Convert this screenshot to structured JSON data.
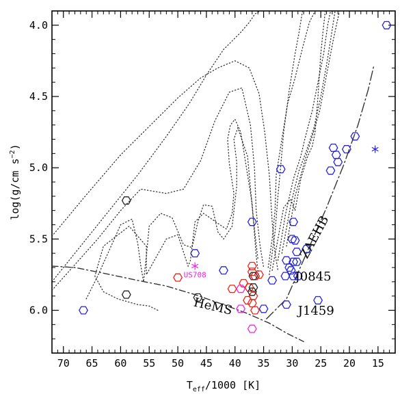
{
  "chart_data": {
    "type": "scatter",
    "title": "",
    "xlabel": "T_eff/1000 [K]",
    "xlabel_main": "T",
    "xlabel_sub": "eff",
    "xlabel_rest": "/1000 [K]",
    "ylabel": "log(g/cm s^-2)",
    "ylabel_main": "log(g/cm s",
    "ylabel_sup": "−2",
    "ylabel_close": ")",
    "xlim": [
      72,
      12
    ],
    "ylim": [
      6.3,
      3.9
    ],
    "x_ticks": [
      70,
      65,
      60,
      55,
      50,
      45,
      40,
      35,
      30,
      25,
      20,
      15
    ],
    "y_ticks": [
      "4.0",
      "4.5",
      "5.0",
      "5.5",
      "6.0"
    ],
    "y_tick_values": [
      4.0,
      4.5,
      5.0,
      5.5,
      6.0
    ],
    "colors": {
      "blue": "#2222dd",
      "red": "#ee2211",
      "magenta": "#ee22ee",
      "black": "#222222",
      "line": "#333333"
    },
    "series": [
      {
        "name": "blue",
        "marker": "hexagon",
        "color": "#2222dd",
        "points": [
          [
            13.5,
            4.0
          ],
          [
            19,
            4.78
          ],
          [
            20.5,
            4.87
          ],
          [
            22,
            4.96
          ],
          [
            22.3,
            4.91
          ],
          [
            22.8,
            4.86
          ],
          [
            23.3,
            5.02
          ],
          [
            32,
            5.01
          ],
          [
            37,
            5.38
          ],
          [
            29.8,
            5.38
          ],
          [
            30,
            5.5
          ],
          [
            29.5,
            5.51
          ],
          [
            29.2,
            5.59
          ],
          [
            27.5,
            5.57
          ],
          [
            31,
            5.65
          ],
          [
            29.8,
            5.66
          ],
          [
            29.2,
            5.66
          ],
          [
            30.5,
            5.7
          ],
          [
            30.2,
            5.72
          ],
          [
            29.8,
            5.76
          ],
          [
            31.2,
            5.76
          ],
          [
            29,
            5.76
          ],
          [
            33.5,
            5.79
          ],
          [
            36.5,
            5.76
          ],
          [
            35,
            5.99
          ],
          [
            31,
            5.96
          ],
          [
            25.5,
            5.93
          ],
          [
            42,
            5.72
          ],
          [
            47,
            5.6
          ],
          [
            66.5,
            6.0
          ]
        ]
      },
      {
        "name": "red",
        "marker": "hexagon",
        "color": "#ee2211",
        "points": [
          [
            50,
            5.77
          ],
          [
            37,
            5.69
          ],
          [
            37,
            5.73
          ],
          [
            36.5,
            5.76
          ],
          [
            35.8,
            5.75
          ],
          [
            38.5,
            5.81
          ],
          [
            40.5,
            5.85
          ],
          [
            37.5,
            5.84
          ],
          [
            36.8,
            5.9
          ],
          [
            37.8,
            5.93
          ],
          [
            37,
            5.95
          ],
          [
            36.5,
            6.0
          ]
        ]
      },
      {
        "name": "magenta",
        "marker": "hexagon",
        "color": "#ee22ee",
        "points": [
          [
            39,
            5.85
          ],
          [
            39,
            5.99
          ],
          [
            37,
            6.13
          ]
        ]
      },
      {
        "name": "black",
        "marker": "hexagon",
        "color": "#222222",
        "points": [
          [
            59,
            5.23
          ],
          [
            59,
            5.89
          ],
          [
            46.5,
            5.91
          ],
          [
            37,
            5.87
          ],
          [
            36.8,
            5.84
          ],
          [
            36.8,
            5.76
          ]
        ]
      },
      {
        "name": "asterisk",
        "marker": "asterisk",
        "points": [
          [
            15.5,
            4.87,
            "#2222dd"
          ],
          [
            47,
            5.69,
            "#ee22ee"
          ]
        ]
      }
    ],
    "annotations": [
      {
        "text": "US708",
        "at": [
          47,
          5.77
        ],
        "color": "#ee22ee",
        "anchor": "middle",
        "size": "small"
      },
      {
        "text": "J0845",
        "at": [
          29.5,
          5.79
        ],
        "color": "#000000",
        "anchor": "start"
      },
      {
        "text": "J1459",
        "at": [
          29,
          6.03
        ],
        "color": "#000000",
        "anchor": "start"
      },
      {
        "text": "HeMS",
        "at": [
          44,
          6.0
        ],
        "color": "#000000",
        "anchor": "middle",
        "rotate": 13
      },
      {
        "text": "ZAEHB",
        "at": [
          25.5,
          5.5
        ],
        "color": "#000000",
        "anchor": "middle",
        "rotate": -62
      }
    ],
    "lines": [
      {
        "name": "ZAEHB",
        "style": "longdash-dot",
        "points": [
          [
            34.5,
            6.06
          ],
          [
            31,
            5.92
          ],
          [
            27.5,
            5.6
          ],
          [
            24,
            5.28
          ],
          [
            21,
            4.98
          ],
          [
            18.5,
            4.7
          ],
          [
            16.7,
            4.45
          ],
          [
            15.7,
            4.28
          ]
        ]
      },
      {
        "name": "HeMS",
        "style": "dash-dot",
        "points": [
          [
            72,
            5.69
          ],
          [
            68,
            5.7
          ],
          [
            63,
            5.74
          ],
          [
            57,
            5.79
          ],
          [
            52,
            5.83
          ],
          [
            47,
            5.89
          ],
          [
            42,
            5.96
          ],
          [
            38,
            6.02
          ],
          [
            34,
            6.09
          ],
          [
            31,
            6.16
          ],
          [
            28,
            6.22
          ]
        ]
      },
      {
        "name": "track-1",
        "style": "dotted",
        "points": [
          [
            72,
            5.48
          ],
          [
            66,
            5.19
          ],
          [
            60,
            4.91
          ],
          [
            55,
            4.71
          ],
          [
            50,
            4.51
          ],
          [
            46,
            4.37
          ],
          [
            43,
            4.3
          ],
          [
            40,
            4.25
          ],
          [
            37.5,
            4.3
          ],
          [
            35.8,
            4.48
          ],
          [
            34.8,
            4.75
          ],
          [
            34,
            5.05
          ],
          [
            33.5,
            5.38
          ],
          [
            33,
            5.6
          ],
          [
            32.5,
            5.72
          ]
        ]
      },
      {
        "name": "track-2",
        "style": "dotted",
        "points": [
          [
            72,
            5.8
          ],
          [
            67,
            5.55
          ],
          [
            62,
            5.3
          ],
          [
            57,
            5.05
          ],
          [
            52,
            4.78
          ],
          [
            48,
            4.55
          ],
          [
            45,
            4.35
          ],
          [
            42,
            4.17
          ],
          [
            39,
            4.05
          ],
          [
            37.5,
            3.98
          ],
          [
            36.5,
            3.92
          ],
          [
            35.6,
            3.9
          ]
        ]
      },
      {
        "name": "track-3",
        "style": "dotted",
        "points": [
          [
            72,
            5.86
          ],
          [
            68,
            5.68
          ],
          [
            64,
            5.5
          ],
          [
            60,
            5.3
          ],
          [
            56.5,
            5.15
          ],
          [
            52,
            5.18
          ],
          [
            49,
            5.15
          ],
          [
            46,
            4.95
          ],
          [
            43.5,
            4.67
          ],
          [
            41,
            4.47
          ],
          [
            38.8,
            4.44
          ],
          [
            37.3,
            4.7
          ],
          [
            36.6,
            5.0
          ],
          [
            36.3,
            5.3
          ],
          [
            35.6,
            5.55
          ],
          [
            35,
            5.7
          ]
        ]
      },
      {
        "name": "track-4",
        "style": "dotted",
        "points": [
          [
            66,
            5.92
          ],
          [
            64,
            5.76
          ],
          [
            62,
            5.58
          ],
          [
            60,
            5.4
          ],
          [
            58,
            5.36
          ],
          [
            57,
            5.53
          ],
          [
            56.5,
            5.68
          ],
          [
            56,
            5.8
          ],
          [
            55.5,
            5.62
          ],
          [
            55,
            5.41
          ],
          [
            53,
            5.32
          ],
          [
            51,
            5.35
          ],
          [
            49,
            5.54
          ],
          [
            47.5,
            5.56
          ],
          [
            46.5,
            5.38
          ],
          [
            45.5,
            5.26
          ],
          [
            44,
            5.27
          ],
          [
            43,
            5.45
          ],
          [
            42,
            5.5
          ],
          [
            40.5,
            5.41
          ],
          [
            39.7,
            5.13
          ],
          [
            39.7,
            4.96
          ],
          [
            40.2,
            4.8
          ],
          [
            39.5,
            4.72
          ],
          [
            37.8,
            4.92
          ],
          [
            36.8,
            5.36
          ],
          [
            36,
            5.64
          ]
        ]
      },
      {
        "name": "track-5",
        "style": "dotted",
        "points": [
          [
            53.5,
            6.0
          ],
          [
            55,
            5.97
          ],
          [
            57,
            5.96
          ],
          [
            60.5,
            5.92
          ],
          [
            63,
            5.87
          ],
          [
            64.5,
            5.76
          ],
          [
            63,
            5.55
          ],
          [
            58.5,
            5.41
          ],
          [
            55.5,
            5.55
          ],
          [
            55.5,
            5.75
          ],
          [
            52,
            5.5
          ],
          [
            50,
            5.47
          ],
          [
            48.2,
            5.69
          ],
          [
            47.8,
            5.65
          ],
          [
            47,
            5.38
          ],
          [
            45.5,
            5.32
          ],
          [
            43,
            5.39
          ],
          [
            41.5,
            5.43
          ],
          [
            40.5,
            5.32
          ],
          [
            40.2,
            5.18
          ],
          [
            41,
            4.97
          ],
          [
            41.3,
            4.8
          ],
          [
            40.8,
            4.7
          ],
          [
            40,
            4.66
          ],
          [
            39,
            4.75
          ],
          [
            37,
            5.25
          ],
          [
            36.3,
            5.62
          ],
          [
            35.8,
            5.78
          ]
        ]
      },
      {
        "name": "track-6",
        "style": "dotted",
        "points": [
          [
            34.2,
            5.7
          ],
          [
            33.5,
            5.5
          ],
          [
            33,
            5.3
          ],
          [
            32.8,
            5.05
          ],
          [
            31.8,
            4.8
          ],
          [
            30.8,
            4.55
          ],
          [
            29.5,
            4.37
          ],
          [
            28.2,
            4.16
          ],
          [
            27,
            3.98
          ],
          [
            26,
            3.9
          ]
        ]
      },
      {
        "name": "track-7",
        "style": "dotted",
        "points": [
          [
            34,
            5.75
          ],
          [
            33,
            5.45
          ],
          [
            32.5,
            5.2
          ],
          [
            32,
            4.98
          ],
          [
            31.5,
            4.75
          ],
          [
            30.5,
            4.45
          ],
          [
            29.5,
            4.2
          ],
          [
            28.8,
            4.05
          ],
          [
            28.2,
            3.9
          ]
        ]
      },
      {
        "name": "track-8",
        "style": "dotted",
        "points": [
          [
            33.5,
            5.72
          ],
          [
            32.5,
            5.5
          ],
          [
            31.5,
            5.28
          ],
          [
            30.3,
            5.22
          ],
          [
            29.5,
            5.3
          ],
          [
            28.5,
            5.08
          ],
          [
            27.3,
            4.92
          ],
          [
            26.5,
            4.85
          ],
          [
            26,
            4.75
          ],
          [
            25.5,
            4.5
          ],
          [
            25,
            4.2
          ],
          [
            24.5,
            4.0
          ],
          [
            24.2,
            3.9
          ]
        ]
      },
      {
        "name": "track-9",
        "style": "dotted",
        "points": [
          [
            32.5,
            5.65
          ],
          [
            31.2,
            5.33
          ],
          [
            29.8,
            5.08
          ],
          [
            28.5,
            4.92
          ],
          [
            27.8,
            4.8
          ],
          [
            26.5,
            4.6
          ],
          [
            25.5,
            4.4
          ],
          [
            24.5,
            4.2
          ],
          [
            23.8,
            4.0
          ],
          [
            23.3,
            3.9
          ]
        ]
      },
      {
        "name": "track-10",
        "style": "dotted",
        "points": [
          [
            31.8,
            5.6
          ],
          [
            30.2,
            5.25
          ],
          [
            28.8,
            5.02
          ],
          [
            27.5,
            4.88
          ],
          [
            26.2,
            4.72
          ],
          [
            25,
            4.5
          ],
          [
            24,
            4.28
          ],
          [
            23.2,
            4.08
          ],
          [
            22.5,
            3.9
          ]
        ]
      },
      {
        "name": "track-11",
        "style": "dotted",
        "points": [
          [
            31,
            5.55
          ],
          [
            29.5,
            5.2
          ],
          [
            27.8,
            4.95
          ],
          [
            26.5,
            4.78
          ],
          [
            25.2,
            4.6
          ],
          [
            24,
            4.35
          ],
          [
            22.8,
            4.1
          ],
          [
            22,
            3.95
          ],
          [
            21.7,
            3.9
          ]
        ]
      }
    ]
  }
}
